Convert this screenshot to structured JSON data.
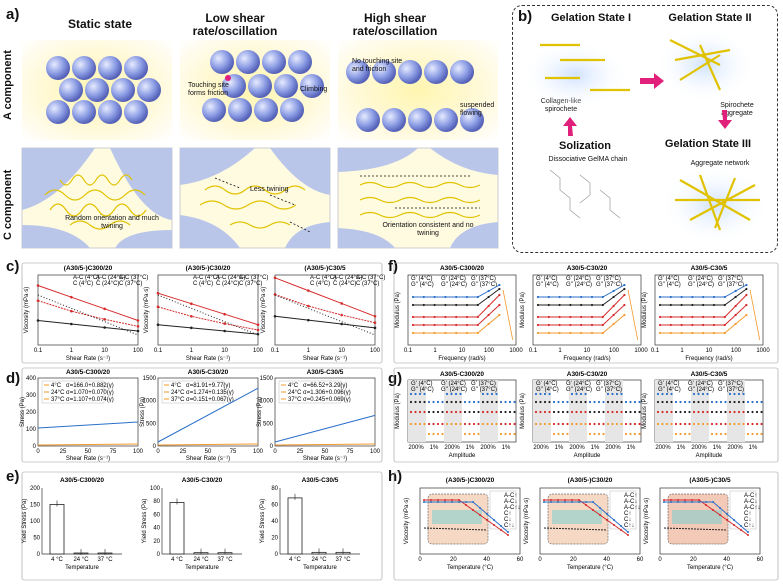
{
  "panel_a": {
    "label": "a)",
    "col_titles": [
      "Static state",
      "Low shear rate/oscillation",
      "High shear rate/oscillation"
    ],
    "row_labels": [
      "A component",
      "C component"
    ],
    "annotations": {
      "touching": "Touching site forms friction",
      "climbing": "Climbing",
      "no_touching": "No touching site and friction",
      "suspended": "suspended flowing",
      "random": "Random orientation and much twining",
      "less": "Less twining",
      "consistent": "Orientation consistent and no twining"
    }
  },
  "panel_b": {
    "label": "b)",
    "states": {
      "s1": "Gelation State I",
      "s2": "Gelation State II",
      "s3": "Gelation State III",
      "sol": "Solization"
    },
    "captions": {
      "collagen": "Collagen-like spirochete",
      "spiro": "Spirochete aggregate",
      "aggregate": "Aggregate network",
      "dissociative": "Dissociative GelMA chain"
    }
  },
  "colors": {
    "blue": "#2a6fc9",
    "red": "#d62b2b",
    "orange": "#f39a2e",
    "black": "#222222",
    "gray": "#777777",
    "teal": "#6fcfcf",
    "tan": "#e9c3a6"
  },
  "chart_data": [
    {
      "panel": "c)",
      "type": "line",
      "titles": [
        "(A30/5-)C300/20",
        "(A30/5-)C30/20",
        "(A30/5-)C30/5"
      ],
      "xlabel": "Shear Rate (s⁻¹)",
      "ylabel": "Viscosity (mPa·s)",
      "xticks": [
        "0.1",
        "1",
        "10",
        "100"
      ],
      "legend": [
        "A-C (4°C)",
        "A-C (24°C)",
        "A-C (37°C)",
        "C (4°C)",
        "C (24°C)",
        "C (37°C)"
      ],
      "series_log10": {
        "A-C (4°C)": [
          [
            -1,
            6.6
          ],
          [
            0,
            5.6
          ],
          [
            1,
            4.6
          ],
          [
            2,
            3.6
          ]
        ],
        "A-C (24°C)": [
          [
            -1,
            5.3
          ],
          [
            0,
            4.4
          ],
          [
            1,
            3.7
          ],
          [
            2,
            3.1
          ]
        ],
        "C (4°C)": [
          [
            -1,
            3.6
          ],
          [
            0,
            3.3
          ],
          [
            1,
            3.0
          ],
          [
            2,
            2.7
          ]
        ]
      }
    },
    {
      "panel": "d)",
      "type": "line",
      "titles": [
        "A30/5-C300/20",
        "A30/5-C30/20",
        "A30/5-C30/5"
      ],
      "xlabel": "Shear Rate (s⁻¹)",
      "ylabel": "Stress (Pa)",
      "legend": [
        "4°C",
        "24°C",
        "37°C"
      ],
      "fits": [
        [
          "σ=166.0+0.882(γ)",
          "σ=1.070+0.070(γ)",
          "σ=1.107+0.074(γ)"
        ],
        [
          "σ=81.91+9.77(γ)",
          "σ=1.274+0.135(γ)",
          "σ=0.151+0.067(γ)"
        ],
        [
          "σ=66.52+3.29(γ)",
          "σ=1.306+0.096(γ)",
          "σ=0.245+0.069(γ)"
        ]
      ],
      "xticks": [
        "0",
        "25",
        "50",
        "75",
        "100"
      ],
      "yticks": [
        [
          "0",
          "100",
          "200",
          "300",
          "400"
        ],
        [
          "0",
          "500",
          "1000",
          "1500"
        ],
        [
          "0",
          "500",
          "1000",
          "1500"
        ]
      ]
    },
    {
      "panel": "e)",
      "type": "bar",
      "titles": [
        "A30/5-C300/20",
        "A30/5-C30/20",
        "A30/5-C30/5"
      ],
      "categories": [
        "4 °C",
        "24 °C",
        "37 °C"
      ],
      "xlabel": "Temperature",
      "ylabel": "Yield Stress (Pa)",
      "yticks": [
        [
          "0",
          "50",
          "100",
          "150",
          "200"
        ],
        [
          "0",
          "20",
          "40",
          "60",
          "80",
          "100"
        ],
        [
          "0",
          "20",
          "40",
          "60",
          "80"
        ]
      ],
      "ylim": [
        [
          0,
          200
        ],
        [
          0,
          100
        ],
        [
          0,
          80
        ]
      ],
      "values": [
        [
          150,
          3,
          3
        ],
        [
          78,
          2,
          2
        ],
        [
          68,
          2,
          2
        ]
      ]
    },
    {
      "panel": "f)",
      "type": "line",
      "titles": [
        "A30/5-C300/20",
        "A30/5-C30/20",
        "A30/5-C30/5"
      ],
      "xlabel": "Frequency (rad/s)",
      "ylabel": "Modulus (Pa)",
      "xticks": [
        "0.1",
        "1",
        "10",
        "100",
        "1000"
      ],
      "legend": [
        "G' (4°C)",
        "G' (24°C)",
        "G' (37°C)",
        "G'' (4°C)",
        "G'' (24°C)",
        "G'' (37°C)"
      ]
    },
    {
      "panel": "g)",
      "type": "line",
      "titles": [
        "A30/5-C300/20",
        "A30/5-C30/20",
        "A30/5-C30/5"
      ],
      "xlabel": "Amplitude",
      "ylabel": "Modulus (Pa)",
      "xticks": [
        "200%",
        "1%",
        "200%",
        "1%",
        "200%",
        "1%"
      ],
      "legend": [
        "G' (4°C)",
        "G' (24°C)",
        "G' (37°C)",
        "G'' (4°C)",
        "G'' (24°C)",
        "G'' (37°C)"
      ]
    },
    {
      "panel": "h)",
      "type": "line",
      "titles": [
        "(A30/5-)C300/20",
        "(A30/5-)C30/20",
        "(A30/5-)C30/5"
      ],
      "xlabel": "Temperature (°C)",
      "ylabel": "Viscosity (mPa·s)",
      "xticks": [
        "0",
        "20",
        "40",
        "60"
      ],
      "legend": [
        "A-C↑",
        "A-C↓",
        "A-C↑↓",
        "C↑",
        "C↓",
        "C↑↓"
      ]
    }
  ]
}
